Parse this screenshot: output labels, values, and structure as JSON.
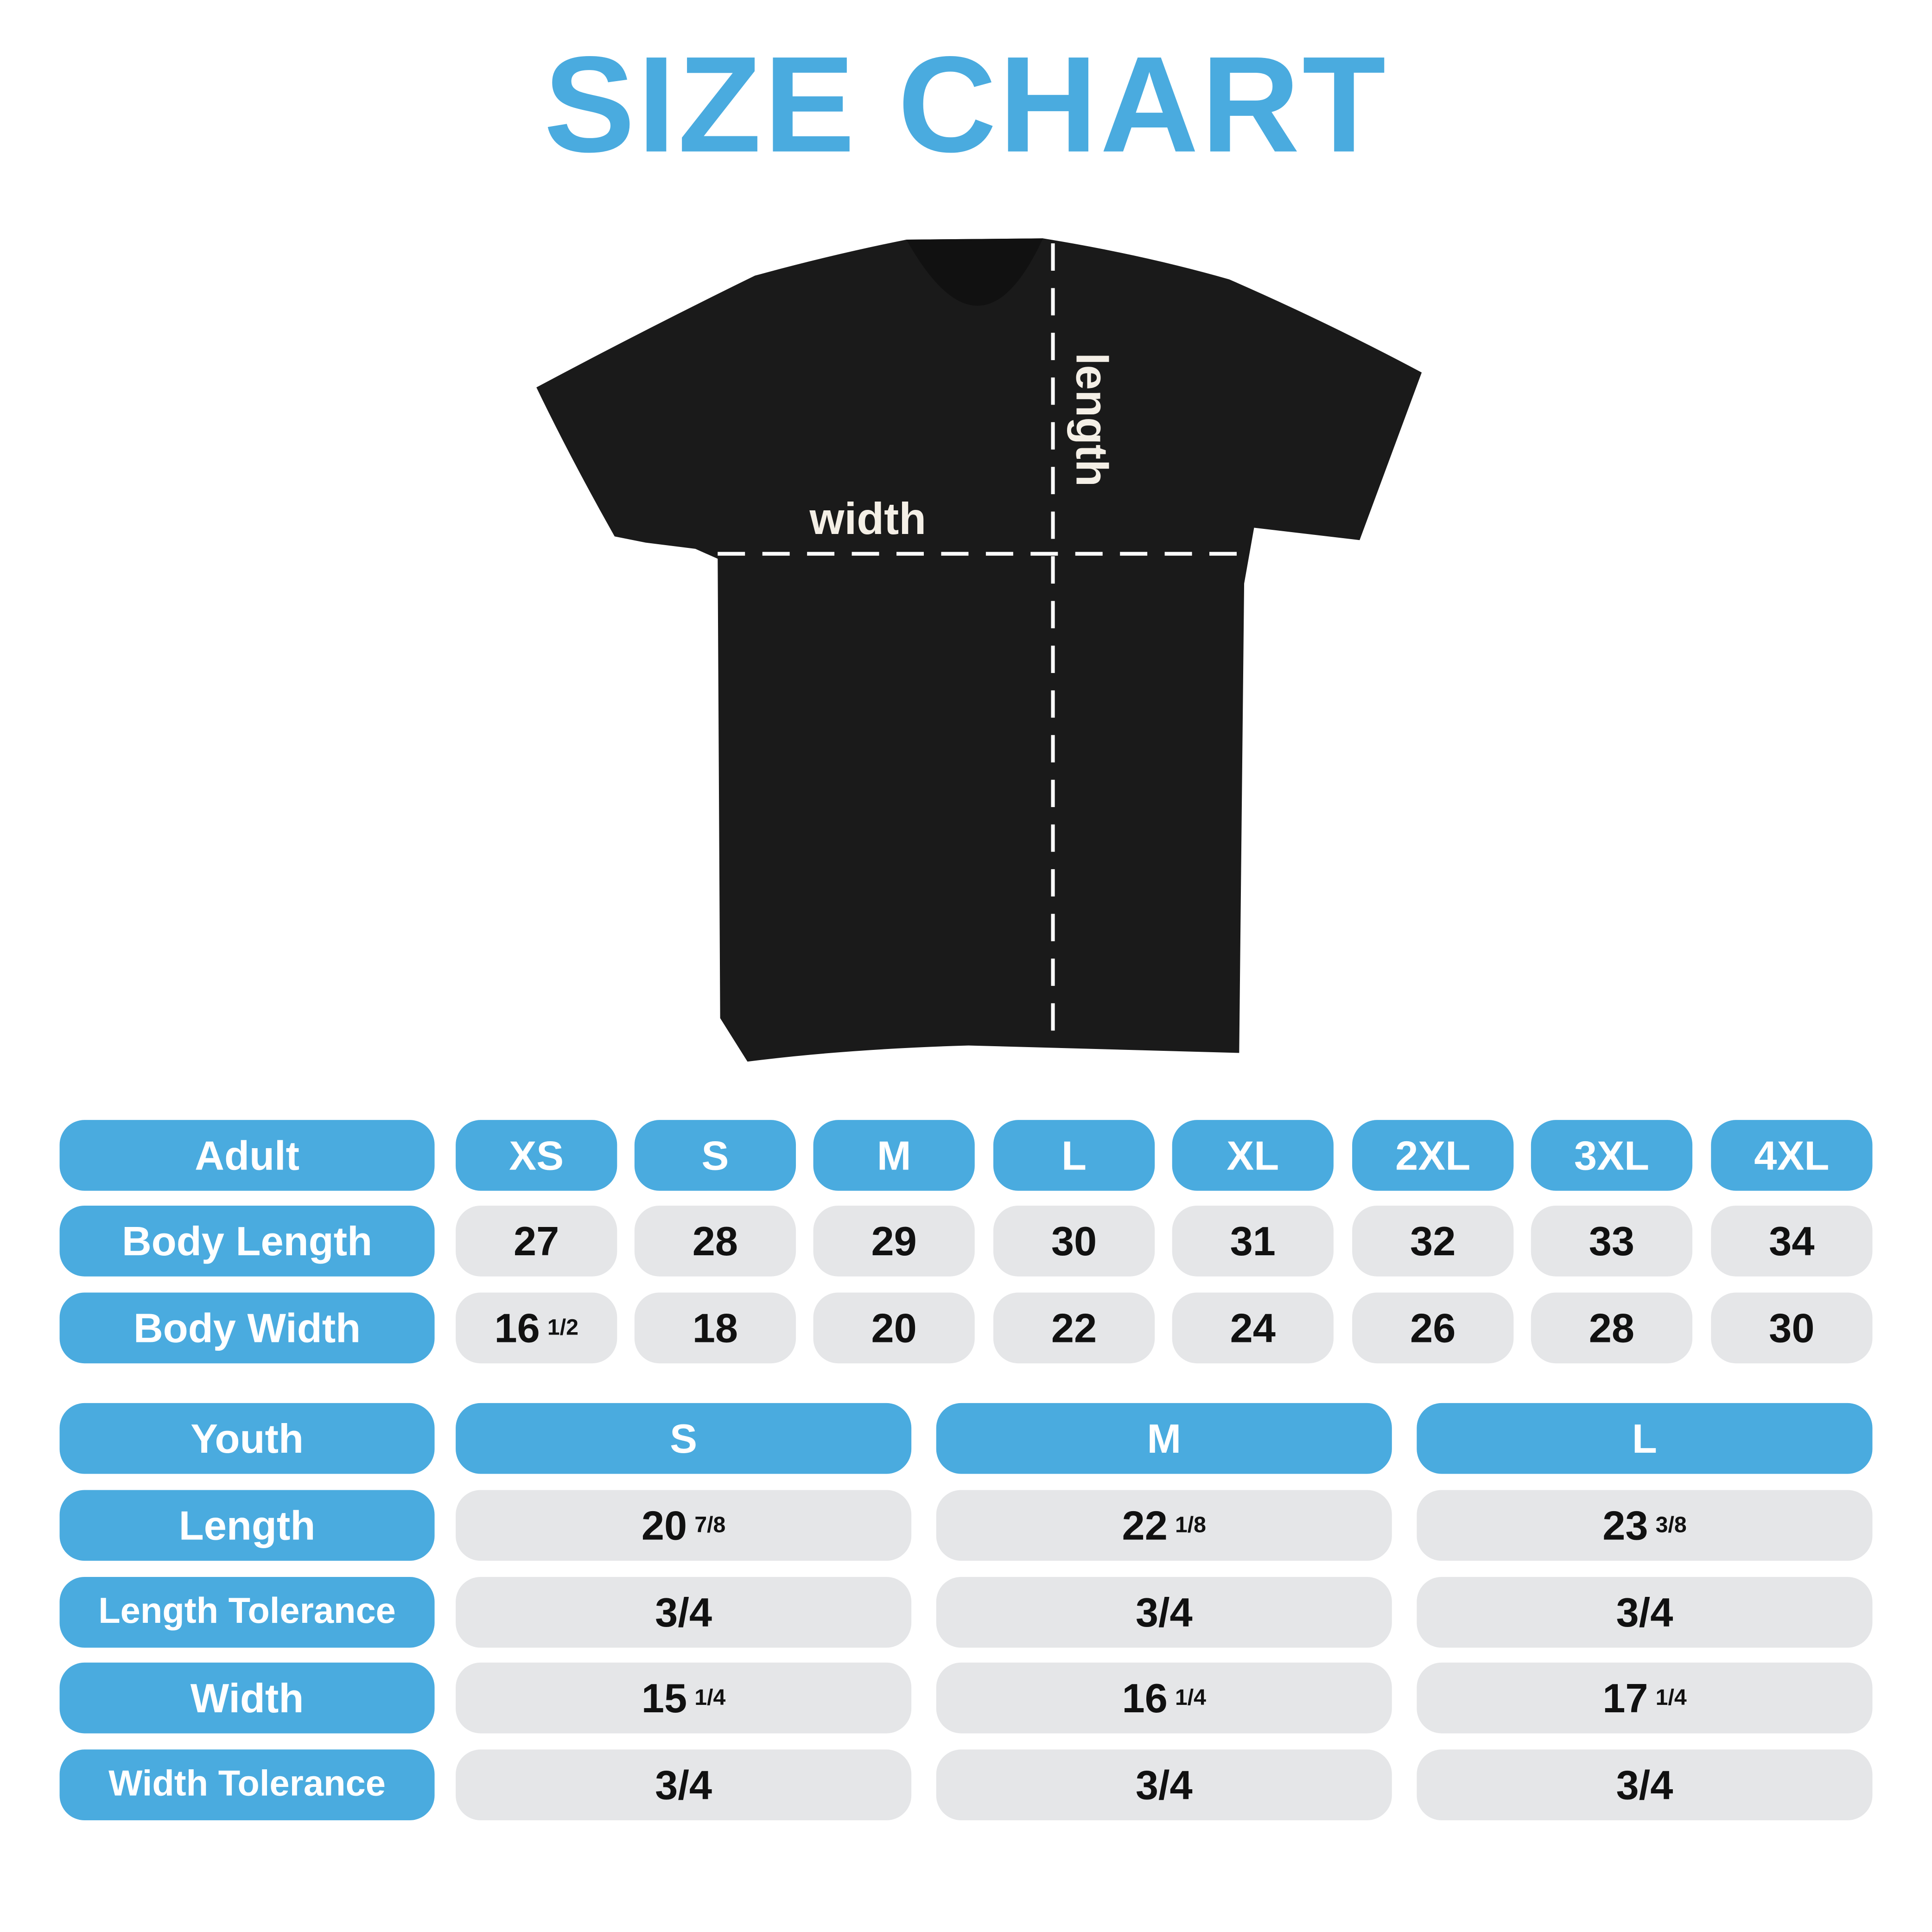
{
  "title": "SIZE CHART",
  "diagram": {
    "width_label": "width",
    "length_label": "length"
  },
  "colors": {
    "accent": "#4aabdf",
    "cell": "#e5e6e8",
    "shirt": "#1a1a1a"
  },
  "adult": {
    "header": "Adult",
    "sizes": [
      "XS",
      "S",
      "M",
      "L",
      "XL",
      "2XL",
      "3XL",
      "4XL"
    ],
    "rows": [
      {
        "label": "Body Length",
        "values": [
          {
            "whole": "27"
          },
          {
            "whole": "28"
          },
          {
            "whole": "29"
          },
          {
            "whole": "30"
          },
          {
            "whole": "31"
          },
          {
            "whole": "32"
          },
          {
            "whole": "33"
          },
          {
            "whole": "34"
          }
        ]
      },
      {
        "label": "Body Width",
        "values": [
          {
            "whole": "16",
            "frac": "1/2"
          },
          {
            "whole": "18"
          },
          {
            "whole": "20"
          },
          {
            "whole": "22"
          },
          {
            "whole": "24"
          },
          {
            "whole": "26"
          },
          {
            "whole": "28"
          },
          {
            "whole": "30"
          }
        ]
      }
    ]
  },
  "youth": {
    "header": "Youth",
    "sizes": [
      "S",
      "M",
      "L"
    ],
    "rows": [
      {
        "label": "Length",
        "values": [
          {
            "whole": "20",
            "frac": "7/8"
          },
          {
            "whole": "22",
            "frac": "1/8"
          },
          {
            "whole": "23",
            "frac": "3/8"
          }
        ]
      },
      {
        "label": "Length Tolerance",
        "values": [
          {
            "whole": "3/4"
          },
          {
            "whole": "3/4"
          },
          {
            "whole": "3/4"
          }
        ]
      },
      {
        "label": "Width",
        "values": [
          {
            "whole": "15",
            "frac": "1/4"
          },
          {
            "whole": "16",
            "frac": "1/4"
          },
          {
            "whole": "17",
            "frac": "1/4"
          }
        ]
      },
      {
        "label": "Width Tolerance",
        "values": [
          {
            "whole": "3/4"
          },
          {
            "whole": "3/4"
          },
          {
            "whole": "3/4"
          }
        ]
      }
    ]
  }
}
